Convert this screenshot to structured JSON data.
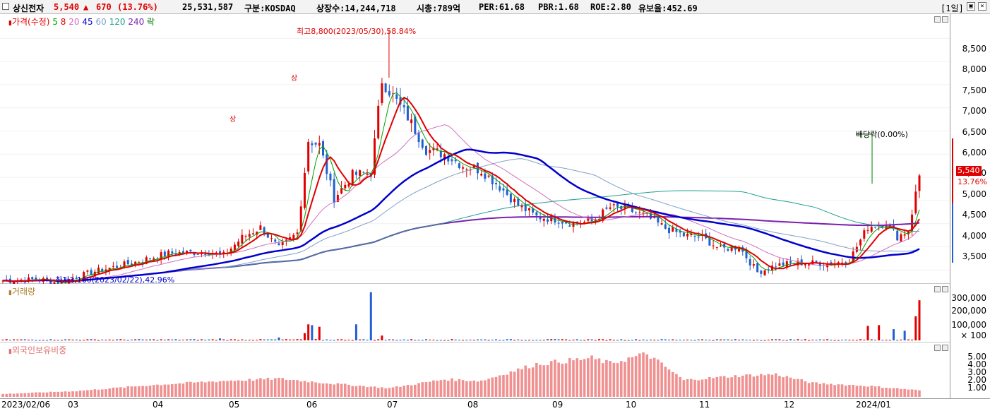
{
  "header": {
    "stock_name": "상신전자",
    "price": "5,540",
    "change_arrow": "▲",
    "change": "670",
    "change_rate": "(13.76%)",
    "volume": "25,531,587",
    "market": "구분:KOSDAQ",
    "listed_shares": "상장수:14,244,718",
    "market_cap": "시총:789억",
    "per": "PER:61.68",
    "pbr": "PBR:1.68",
    "roe": "ROE:2.80",
    "float_ratio": "유보율:452.69",
    "period": "[1일]"
  },
  "price_panel": {
    "legend": [
      {
        "label": "가격(수정)",
        "color": "#e00000"
      },
      {
        "label": "5",
        "color": "#00a000"
      },
      {
        "label": "8",
        "color": "#e00000"
      },
      {
        "label": "20",
        "color": "#d070c0"
      },
      {
        "label": "45",
        "color": "#0000cc"
      },
      {
        "label": "60",
        "color": "#7fa0c8"
      },
      {
        "label": "120",
        "color": "#20a090"
      },
      {
        "label": "240",
        "color": "#7a20b0"
      },
      {
        "label": "락",
        "color": "#008000"
      }
    ],
    "high_label": "최고8,800(2023/05/30),58.84%",
    "low_label": "최저3,160(2023/02/22),42.96%",
    "dividend_label": "배당락(0.00%)",
    "upper_limit_marks": [
      "상",
      "상"
    ],
    "current_price_tag": "5,540",
    "current_rate_tag": "13.76%",
    "y_ticks": [
      "8,500",
      "8,000",
      "7,500",
      "7,000",
      "6,500",
      "6,000",
      "5,500",
      "5,000",
      "4,500",
      "4,000",
      "3,500"
    ]
  },
  "volume_panel": {
    "title": "거래량",
    "y_ticks": [
      "300,000",
      "200,000",
      "100,000",
      "× 100"
    ]
  },
  "foreign_panel": {
    "title": "외국인보유비중",
    "y_ticks": [
      "5.00",
      "4.00",
      "3.00",
      "2.00",
      "1.00"
    ]
  },
  "x_axis": [
    "2023/02/06",
    "03",
    "04",
    "05",
    "06",
    "07",
    "08",
    "09",
    "10",
    "11",
    "12",
    "2024/01"
  ],
  "chart_data": {
    "type": "candlestick",
    "y_range": [
      3200,
      8900
    ],
    "days": 250,
    "price_keyframes": [
      [
        0,
        3270
      ],
      [
        10,
        3300
      ],
      [
        15,
        3220
      ],
      [
        20,
        3350
      ],
      [
        25,
        3470
      ],
      [
        35,
        3650
      ],
      [
        45,
        3860
      ],
      [
        55,
        3890
      ],
      [
        60,
        3820
      ],
      [
        65,
        4200
      ],
      [
        70,
        4420
      ],
      [
        75,
        3960
      ],
      [
        80,
        4300
      ],
      [
        83,
        6300
      ],
      [
        86,
        6200
      ],
      [
        90,
        5050
      ],
      [
        95,
        5550
      ],
      [
        100,
        5600
      ],
      [
        103,
        7600
      ],
      [
        106,
        7250
      ],
      [
        110,
        6800
      ],
      [
        115,
        6100
      ],
      [
        120,
        6000
      ],
      [
        125,
        5750
      ],
      [
        130,
        5650
      ],
      [
        135,
        5300
      ],
      [
        140,
        4900
      ],
      [
        145,
        4650
      ],
      [
        150,
        4600
      ],
      [
        155,
        4500
      ],
      [
        160,
        4550
      ],
      [
        165,
        4850
      ],
      [
        170,
        4800
      ],
      [
        175,
        4650
      ],
      [
        180,
        4400
      ],
      [
        185,
        4250
      ],
      [
        190,
        4200
      ],
      [
        195,
        3950
      ],
      [
        200,
        4000
      ],
      [
        205,
        3450
      ],
      [
        210,
        3600
      ],
      [
        215,
        3650
      ],
      [
        220,
        3650
      ],
      [
        225,
        3630
      ],
      [
        230,
        3720
      ],
      [
        235,
        4430
      ],
      [
        240,
        4520
      ],
      [
        243,
        4220
      ],
      [
        246,
        4350
      ],
      [
        249,
        5540
      ]
    ],
    "volume_spikes": {
      "59": 12,
      "75": 18,
      "82": 45,
      "83": 100,
      "84": 95,
      "86": 85,
      "96": 100,
      "100": 300,
      "103": 30,
      "235": 90,
      "238": 95,
      "242": 70,
      "245": 60,
      "248": 150,
      "249": 250
    },
    "volume_y_max": 330000,
    "foreign_keyframes": [
      [
        0,
        0.4
      ],
      [
        20,
        0.8
      ],
      [
        40,
        1.6
      ],
      [
        60,
        2.2
      ],
      [
        75,
        2.5
      ],
      [
        90,
        1.8
      ],
      [
        105,
        1.2
      ],
      [
        120,
        2.4
      ],
      [
        130,
        2.2
      ],
      [
        145,
        4.5
      ],
      [
        160,
        5.3
      ],
      [
        165,
        4.6
      ],
      [
        175,
        5.9
      ],
      [
        185,
        2.3
      ],
      [
        200,
        2.9
      ],
      [
        210,
        3.1
      ],
      [
        220,
        1.9
      ],
      [
        235,
        1.5
      ],
      [
        249,
        0.9
      ]
    ],
    "foreign_y_max": 6.0
  }
}
